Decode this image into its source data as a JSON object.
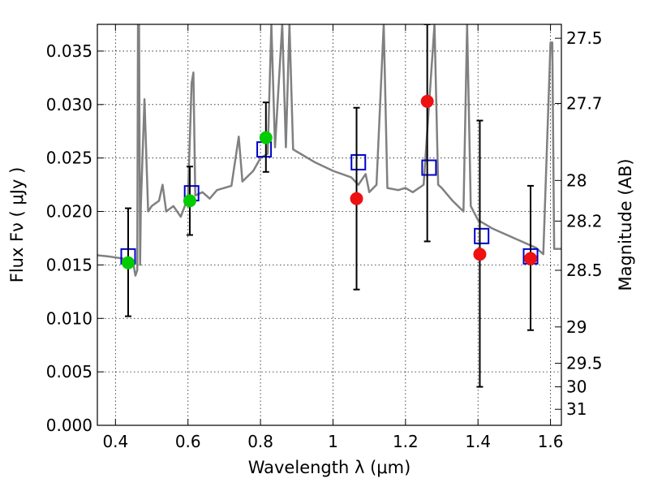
{
  "chart_data": {
    "type": "scatter",
    "title": "",
    "xlabel": "Wavelength  λ (μm)",
    "ylabel": "Flux  Fν  ( μJy )",
    "y2label": "Magnitude (AB)",
    "xlim": [
      0.35,
      1.63
    ],
    "ylim": [
      0.0,
      0.0375
    ],
    "grid": true,
    "x_ticks": [
      0.4,
      0.6,
      0.8,
      1.0,
      1.2,
      1.4,
      1.6
    ],
    "x_tick_labels": [
      "0.4",
      "0.6",
      "0.8",
      "1",
      "1.2",
      "1.4",
      "1.6"
    ],
    "y_ticks": [
      0.0,
      0.005,
      0.01,
      0.015,
      0.02,
      0.025,
      0.03,
      0.035
    ],
    "y_tick_labels": [
      "0.000",
      "0.005",
      "0.010",
      "0.015",
      "0.020",
      "0.025",
      "0.030",
      "0.035"
    ],
    "y2_ticks": [
      {
        "label": "27.5",
        "flux": 0.0362
      },
      {
        "label": "27.7",
        "flux": 0.0301
      },
      {
        "label": "28",
        "flux": 0.0229
      },
      {
        "label": "28.2",
        "flux": 0.0191
      },
      {
        "label": "28.5",
        "flux": 0.0145
      },
      {
        "label": "29",
        "flux": 0.0092
      },
      {
        "label": "29.5",
        "flux": 0.0058
      },
      {
        "label": "30",
        "flux": 0.0036
      },
      {
        "label": "31",
        "flux": 0.0015
      }
    ],
    "series": [
      {
        "marker": "line",
        "color": "#808080",
        "points": [
          [
            0.35,
            0.0159
          ],
          [
            0.38,
            0.0158
          ],
          [
            0.4,
            0.0157
          ],
          [
            0.42,
            0.0156
          ],
          [
            0.44,
            0.0152
          ],
          [
            0.45,
            0.015
          ],
          [
            0.455,
            0.014
          ],
          [
            0.46,
            0.0145
          ],
          [
            0.462,
            0.0375
          ],
          [
            0.465,
            0.0375
          ],
          [
            0.468,
            0.015
          ],
          [
            0.47,
            0.0205
          ],
          [
            0.48,
            0.0305
          ],
          [
            0.49,
            0.02
          ],
          [
            0.5,
            0.0205
          ],
          [
            0.52,
            0.021
          ],
          [
            0.53,
            0.0225
          ],
          [
            0.54,
            0.02
          ],
          [
            0.56,
            0.0205
          ],
          [
            0.58,
            0.0195
          ],
          [
            0.6,
            0.0213
          ],
          [
            0.61,
            0.032
          ],
          [
            0.615,
            0.033
          ],
          [
            0.62,
            0.0215
          ],
          [
            0.64,
            0.0218
          ],
          [
            0.66,
            0.0212
          ],
          [
            0.68,
            0.022
          ],
          [
            0.7,
            0.0222
          ],
          [
            0.72,
            0.0224
          ],
          [
            0.74,
            0.027
          ],
          [
            0.75,
            0.0228
          ],
          [
            0.78,
            0.0238
          ],
          [
            0.8,
            0.025
          ],
          [
            0.82,
            0.0254
          ],
          [
            0.83,
            0.0375
          ],
          [
            0.84,
            0.026
          ],
          [
            0.86,
            0.0375
          ],
          [
            0.87,
            0.026
          ],
          [
            0.88,
            0.0375
          ],
          [
            0.89,
            0.0258
          ],
          [
            0.92,
            0.0252
          ],
          [
            0.95,
            0.0246
          ],
          [
            1.0,
            0.0238
          ],
          [
            1.05,
            0.0232
          ],
          [
            1.07,
            0.0225
          ],
          [
            1.09,
            0.0235
          ],
          [
            1.1,
            0.0218
          ],
          [
            1.12,
            0.0225
          ],
          [
            1.14,
            0.0375
          ],
          [
            1.15,
            0.0222
          ],
          [
            1.18,
            0.022
          ],
          [
            1.2,
            0.0222
          ],
          [
            1.22,
            0.0218
          ],
          [
            1.25,
            0.0225
          ],
          [
            1.28,
            0.0375
          ],
          [
            1.29,
            0.0225
          ],
          [
            1.3,
            0.0222
          ],
          [
            1.33,
            0.021
          ],
          [
            1.36,
            0.02
          ],
          [
            1.37,
            0.0375
          ],
          [
            1.38,
            0.0205
          ],
          [
            1.4,
            0.0192
          ],
          [
            1.44,
            0.0184
          ],
          [
            1.48,
            0.0178
          ],
          [
            1.52,
            0.0172
          ],
          [
            1.56,
            0.0166
          ],
          [
            1.58,
            0.016
          ],
          [
            1.6,
            0.0358
          ],
          [
            1.605,
            0.0358
          ],
          [
            1.61,
            0.0165
          ],
          [
            1.63,
            0.0165
          ]
        ]
      },
      {
        "marker": "open-square",
        "color": "#0000cc",
        "points": [
          [
            0.435,
            0.0158
          ],
          [
            0.61,
            0.0217
          ],
          [
            0.81,
            0.0258
          ],
          [
            1.07,
            0.0246
          ],
          [
            1.265,
            0.0241
          ],
          [
            1.41,
            0.0177
          ],
          [
            1.545,
            0.0158
          ]
        ]
      },
      {
        "marker": "filled-circle",
        "color": "#00cc00",
        "points": [
          [
            0.435,
            0.0152,
            0.0102,
            0.0203
          ],
          [
            0.605,
            0.021,
            0.0178,
            0.0242
          ],
          [
            0.815,
            0.0269,
            0.0237,
            0.0302
          ]
        ]
      },
      {
        "marker": "filled-circle",
        "color": "#ee1111",
        "points": [
          [
            1.065,
            0.0212,
            0.0127,
            0.0297
          ],
          [
            1.26,
            0.0303,
            0.0172,
            0.0375
          ],
          [
            1.405,
            0.016,
            0.0036,
            0.0285
          ],
          [
            1.545,
            0.0156,
            0.0089,
            0.0224
          ]
        ]
      }
    ]
  }
}
